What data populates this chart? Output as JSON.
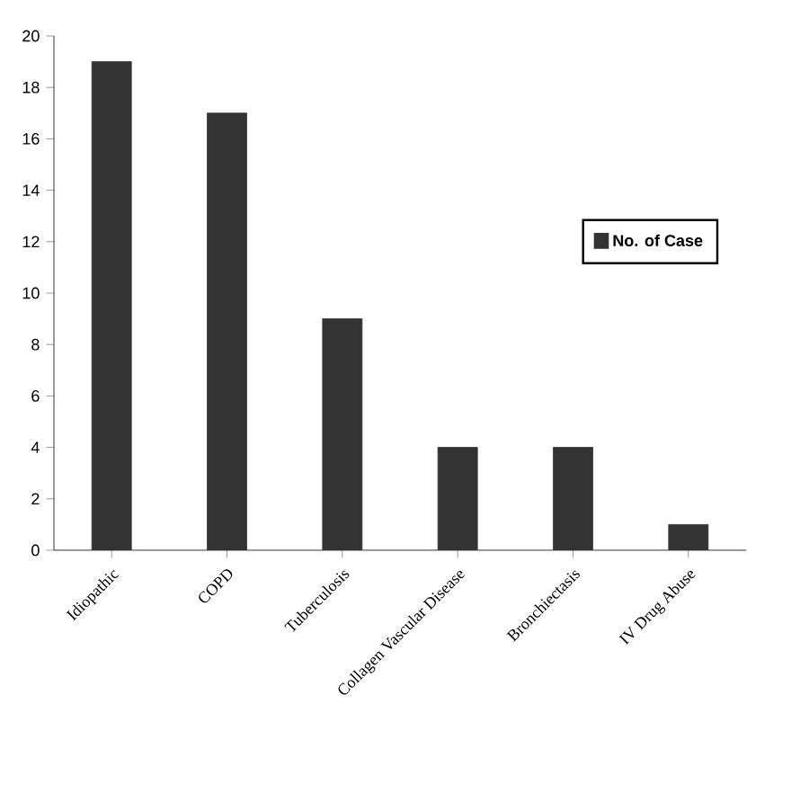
{
  "chart_data": {
    "type": "bar",
    "categories": [
      "Idiopathic",
      "COPD",
      "Tuberculosis",
      "Collagen Vascular Disease",
      "Bronchiectasis",
      "IV Drug Abuse"
    ],
    "series": [
      {
        "name": "No. of Case",
        "color": "#333333",
        "values": [
          19,
          17,
          9,
          4,
          4,
          1
        ]
      }
    ],
    "ylim": [
      0,
      20
    ],
    "yticks": [
      0,
      2,
      4,
      6,
      8,
      10,
      12,
      14,
      16,
      18,
      20
    ],
    "grid": false,
    "legend": "right"
  }
}
